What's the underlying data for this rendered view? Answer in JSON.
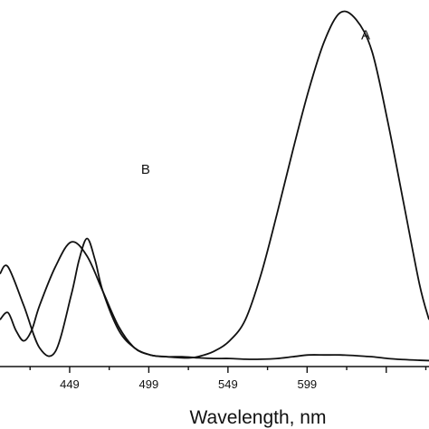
{
  "chart_data": {
    "type": "line",
    "title": "",
    "xlabel": "Wavelength, nm",
    "ylabel": "",
    "xlim": [
      405,
      676
    ],
    "ylim": [
      0,
      1
    ],
    "x_ticks": [
      449,
      499,
      549,
      599
    ],
    "x_tick_labels": [
      "449",
      "499",
      "549",
      "599"
    ],
    "grid": false,
    "legend": "none",
    "line_color": "#111111",
    "series": [
      {
        "name": "A",
        "x": [
          405,
          410,
          415,
          420,
          425,
          430,
          440,
          450,
          460,
          470,
          480,
          490,
          500,
          510,
          520,
          530,
          540,
          550,
          560,
          570,
          580,
          590,
          600,
          610,
          620,
          630,
          636,
          640,
          650,
          660,
          670,
          676
        ],
        "y": [
          0.12,
          0.14,
          0.09,
          0.06,
          0.09,
          0.16,
          0.27,
          0.34,
          0.3,
          0.2,
          0.1,
          0.04,
          0.02,
          0.015,
          0.015,
          0.012,
          0.01,
          0.01,
          0.008,
          0.008,
          0.01,
          0.015,
          0.02,
          0.02,
          0.02,
          0.018,
          0.016,
          0.015,
          0.01,
          0.007,
          0.005,
          0.004
        ]
      },
      {
        "name": "B",
        "x": [
          405,
          410,
          420,
          430,
          440,
          450,
          455,
          460,
          465,
          470,
          480,
          490,
          500,
          510,
          520,
          525,
          530,
          540,
          550,
          560,
          570,
          580,
          590,
          600,
          610,
          620,
          630,
          640,
          650,
          660,
          670,
          676
        ],
        "y": [
          0.25,
          0.27,
          0.16,
          0.04,
          0.03,
          0.19,
          0.29,
          0.35,
          0.29,
          0.2,
          0.09,
          0.04,
          0.02,
          0.015,
          0.012,
          0.012,
          0.015,
          0.03,
          0.06,
          0.12,
          0.25,
          0.42,
          0.6,
          0.77,
          0.91,
          0.99,
          0.97,
          0.88,
          0.68,
          0.45,
          0.22,
          0.12
        ]
      }
    ],
    "annotations": [
      {
        "text": "A",
        "x": 636,
        "y": 0.97
      },
      {
        "text": "B",
        "x": 497,
        "y": 0.59
      }
    ]
  }
}
